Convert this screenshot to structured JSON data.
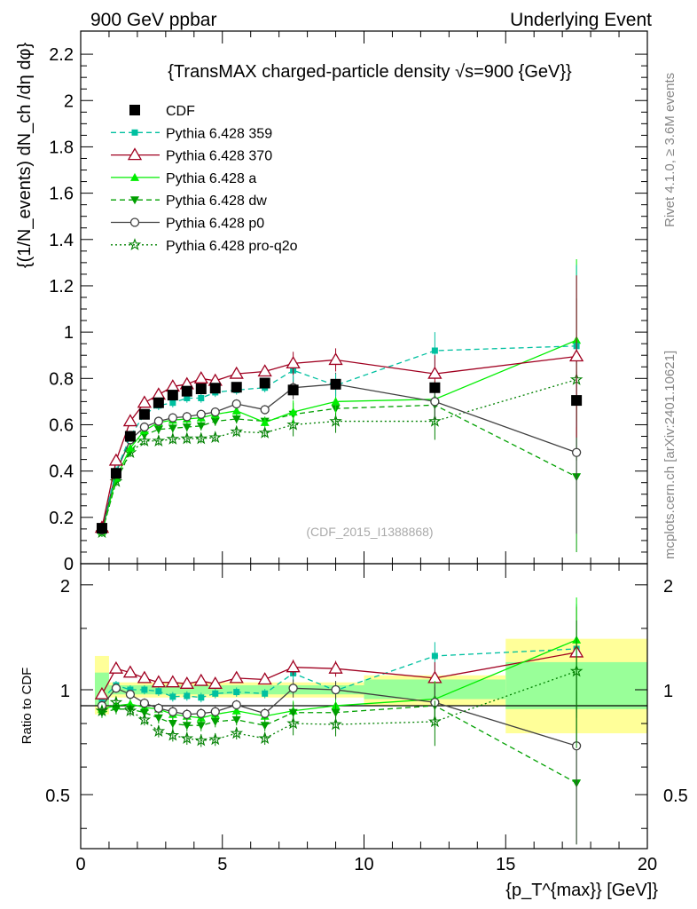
{
  "header": {
    "left": "900 GeV ppbar",
    "right": "Underlying Event"
  },
  "side_labels": {
    "rivet": "Rivet 4.1.0, ≥ 3.6M events",
    "mcplots": "mcplots.cern.ch [arXiv:2401.10621]"
  },
  "watermark": "(CDF_2015_I1388868)",
  "colors": {
    "cdf": "#000000",
    "p359": "#00c0a0",
    "p370": "#a00020",
    "a": "#00ee00",
    "dw": "#00a000",
    "p0": "#404040",
    "proq2o": "#008000",
    "band_inner": "#99ff99",
    "band_outer": "#ffff99"
  },
  "chart_data": [
    {
      "type": "line",
      "title": "{TransMAX charged-particle density √s=900 {GeV}}",
      "ylabel": "{(1/N_events) dN_ch /dη dφ}",
      "xlim": [
        0,
        20
      ],
      "ylim": [
        0,
        2.3
      ],
      "yticks": [
        0,
        0.2,
        0.4,
        0.6,
        0.8,
        1,
        1.2,
        1.4,
        1.6,
        1.8,
        2,
        2.2
      ],
      "ytick_labels": [
        "0",
        "0.2",
        "0.4",
        "0.6",
        "0.8",
        "1",
        "1.2",
        "1.4",
        "1.6",
        "1.8",
        "2",
        "2.2"
      ],
      "x": [
        0.75,
        1.25,
        1.75,
        2.25,
        2.75,
        3.25,
        3.75,
        4.25,
        4.75,
        5.5,
        6.5,
        7.5,
        9.0,
        12.5,
        17.5
      ],
      "legend": [
        "CDF",
        "Pythia 6.428 359",
        "Pythia 6.428 370",
        "Pythia 6.428 a",
        "Pythia 6.428 dw",
        "Pythia 6.428 p0",
        "Pythia 6.428 pro-q2o"
      ],
      "series": [
        {
          "name": "CDF",
          "values": [
            0.153,
            0.39,
            0.55,
            0.645,
            0.695,
            0.728,
            0.745,
            0.755,
            0.758,
            0.762,
            0.78,
            0.75,
            0.775,
            0.76,
            0.705
          ]
        },
        {
          "name": "Pythia 6.428 359",
          "values": [
            0.155,
            0.4,
            0.55,
            0.645,
            0.683,
            0.695,
            0.715,
            0.715,
            0.74,
            0.75,
            0.76,
            0.835,
            0.77,
            0.92,
            0.94
          ]
        },
        {
          "name": "Pythia 6.428 370",
          "values": [
            0.155,
            0.445,
            0.615,
            0.695,
            0.73,
            0.765,
            0.775,
            0.8,
            0.79,
            0.82,
            0.83,
            0.865,
            0.88,
            0.82,
            0.895
          ]
        },
        {
          "name": "Pythia 6.428 a",
          "values": [
            0.14,
            0.37,
            0.5,
            0.575,
            0.61,
            0.62,
            0.625,
            0.63,
            0.645,
            0.66,
            0.61,
            0.655,
            0.7,
            0.71,
            0.965
          ]
        },
        {
          "name": "Pythia 6.428 dw",
          "values": [
            0.135,
            0.355,
            0.485,
            0.555,
            0.58,
            0.585,
            0.59,
            0.595,
            0.615,
            0.625,
            0.615,
            0.645,
            0.67,
            0.685,
            0.375
          ]
        },
        {
          "name": "Pythia 6.428 p0",
          "values": [
            0.145,
            0.395,
            0.535,
            0.59,
            0.615,
            0.63,
            0.635,
            0.645,
            0.655,
            0.69,
            0.665,
            0.76,
            0.775,
            0.7,
            0.48
          ]
        },
        {
          "name": "Pythia 6.428 pro-q2o",
          "values": [
            0.135,
            0.355,
            0.48,
            0.53,
            0.53,
            0.538,
            0.54,
            0.54,
            0.545,
            0.57,
            0.565,
            0.6,
            0.615,
            0.615,
            0.795
          ]
        }
      ]
    },
    {
      "type": "line",
      "ylabel": "Ratio to CDF",
      "xlabel": "{p_T^{max}} [GeV]}",
      "xlim": [
        0,
        20
      ],
      "ylim": [
        0.35,
        2.3
      ],
      "yscale": "log",
      "yticks": [
        0.5,
        1,
        2
      ],
      "ytick_labels": [
        "0.5",
        "1",
        "2"
      ],
      "xticks": [
        0,
        5,
        10,
        15,
        20
      ],
      "xtick_labels": [
        "0",
        "5",
        "10",
        "15",
        "20"
      ],
      "x": [
        0.75,
        1.25,
        1.75,
        2.25,
        2.75,
        3.25,
        3.75,
        4.25,
        4.75,
        5.5,
        6.5,
        7.5,
        9.0,
        12.5,
        17.5
      ],
      "bands": [
        {
          "x0": 0.5,
          "x1": 1.0,
          "inner": [
            0.9,
            1.12
          ],
          "outer": [
            0.85,
            1.25
          ]
        },
        {
          "x0": 1.0,
          "x1": 10.0,
          "inner": [
            0.97,
            1.03
          ],
          "outer": [
            0.95,
            1.05
          ]
        },
        {
          "x0": 10.0,
          "x1": 15.0,
          "inner": [
            0.94,
            1.07
          ],
          "outer": [
            0.9,
            1.1
          ]
        },
        {
          "x0": 15.0,
          "x1": 20.0,
          "inner": [
            0.88,
            1.2
          ],
          "outer": [
            0.75,
            1.4
          ]
        }
      ],
      "series": [
        {
          "name": "Pythia 6.428 359",
          "values": [
            0.94,
            1.03,
            1.0,
            1.0,
            0.99,
            0.955,
            0.96,
            0.95,
            0.975,
            0.985,
            0.975,
            1.115,
            0.995,
            1.25,
            1.31
          ]
        },
        {
          "name": "Pythia 6.428 370",
          "values": [
            0.97,
            1.15,
            1.12,
            1.08,
            1.05,
            1.05,
            1.04,
            1.06,
            1.04,
            1.08,
            1.07,
            1.16,
            1.15,
            1.08,
            1.28
          ]
        },
        {
          "name": "Pythia 6.428 a",
          "values": [
            0.88,
            0.9,
            0.91,
            0.89,
            0.88,
            0.85,
            0.84,
            0.83,
            0.85,
            0.87,
            0.84,
            0.87,
            0.9,
            0.94,
            1.39
          ]
        },
        {
          "name": "Pythia 6.428 dw",
          "values": [
            0.86,
            0.88,
            0.88,
            0.86,
            0.83,
            0.8,
            0.79,
            0.79,
            0.81,
            0.82,
            0.79,
            0.86,
            0.86,
            0.9,
            0.54
          ]
        },
        {
          "name": "Pythia 6.428 p0",
          "values": [
            0.9,
            1.01,
            0.97,
            0.915,
            0.885,
            0.865,
            0.85,
            0.855,
            0.865,
            0.905,
            0.855,
            1.01,
            1.0,
            0.92,
            0.69
          ]
        },
        {
          "name": "Pythia 6.428 pro-q2o",
          "values": [
            0.87,
            0.92,
            0.87,
            0.82,
            0.76,
            0.74,
            0.725,
            0.715,
            0.72,
            0.75,
            0.725,
            0.8,
            0.795,
            0.81,
            1.13
          ]
        }
      ]
    }
  ]
}
